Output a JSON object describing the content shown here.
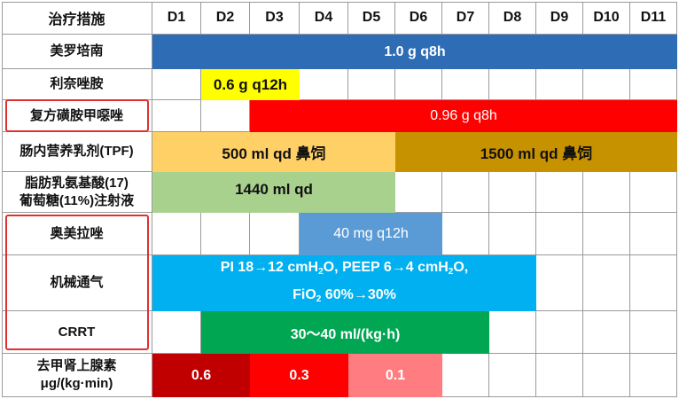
{
  "header": {
    "first_col": "治疗措施",
    "days": [
      "D1",
      "D2",
      "D3",
      "D4",
      "D5",
      "D6",
      "D7",
      "D8",
      "D9",
      "D10",
      "D11"
    ]
  },
  "rows": [
    {
      "label": "美罗培南"
    },
    {
      "label": "利奈唑胺"
    },
    {
      "label": "复方磺胺甲噁唑"
    },
    {
      "label": "肠内营养乳剂(TPF)"
    },
    {
      "label_line1": "脂肪乳氨基酸(17)",
      "label_line2": "葡萄糖(11%)注射液"
    },
    {
      "label": "奥美拉唑"
    },
    {
      "label": "机械通气"
    },
    {
      "label": "CRRT"
    },
    {
      "label_line1": "去甲肾上腺素",
      "label_line2": "μg/(kg·min)"
    }
  ],
  "bars": {
    "meropenem": "1.0 g q8h",
    "linezolid": "0.6 g q12h",
    "smz": "0.96 g q8h",
    "tpf_a": "500 ml qd 鼻饲",
    "tpf_b": "1500 ml qd 鼻饲",
    "lipid": "1440 ml qd",
    "omeprazole": "40 mg q12h",
    "vent_line1_a": "PI 18→12 cmH",
    "vent_line1_sub": "2",
    "vent_line1_b": "O, PEEP 6→4 cmH",
    "vent_line1_sub2": "2",
    "vent_line1_c": "O,",
    "vent_line2_a": "FiO",
    "vent_line2_sub": "2",
    "vent_line2_b": " 60%→30%",
    "crrt": "30～40 ml/(kg·h)",
    "ne_1": "0.6",
    "ne_2": "0.3",
    "ne_3": "0.1"
  },
  "colors": {
    "blue": "#2e6db5",
    "yellow": "#ffff00",
    "red": "#ff0000",
    "tan": "#ffd066",
    "brown": "#c79200",
    "green_light": "#a9d18e",
    "blue_light": "#5b9bd5",
    "cyan": "#00b0f0",
    "green": "#00a651",
    "dark_red": "#c00000",
    "pink": "#ff7c80"
  }
}
